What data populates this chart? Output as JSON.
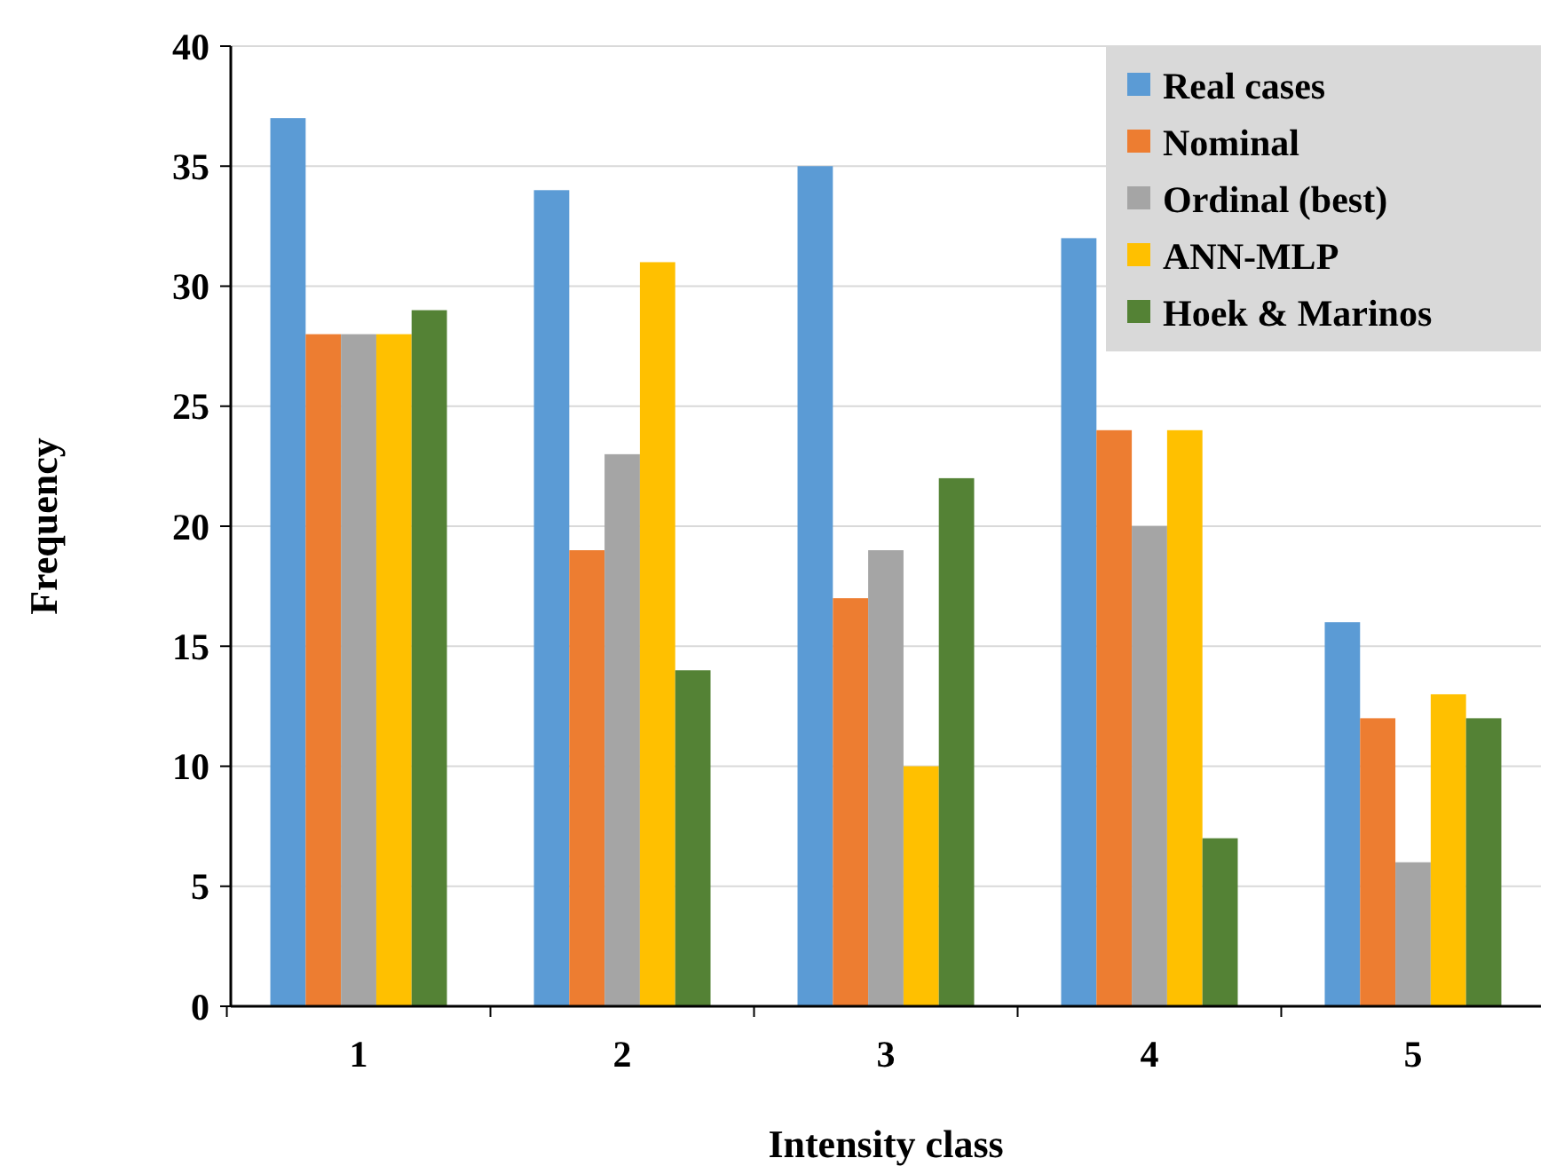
{
  "chart_data": {
    "type": "bar",
    "xlabel": "Intensity class",
    "ylabel": "Frequency",
    "categories": [
      "1",
      "2",
      "3",
      "4",
      "5"
    ],
    "series": [
      {
        "name": "Real cases",
        "color": "#5b9bd5",
        "values": [
          37,
          34,
          35,
          32,
          16
        ]
      },
      {
        "name": "Nominal",
        "color": "#ed7d31",
        "values": [
          28,
          19,
          17,
          24,
          12
        ]
      },
      {
        "name": "Ordinal (best)",
        "color": "#a5a5a5",
        "values": [
          28,
          23,
          19,
          20,
          6
        ]
      },
      {
        "name": "ANN-MLP",
        "color": "#ffc000",
        "values": [
          28,
          31,
          10,
          24,
          13
        ]
      },
      {
        "name": "Hoek & Marinos",
        "color": "#548235",
        "values": [
          29,
          14,
          22,
          7,
          12
        ]
      }
    ],
    "ylim": [
      0,
      40
    ],
    "yticks": [
      0,
      5,
      10,
      15,
      20,
      25,
      30,
      35,
      40
    ],
    "grid": "y",
    "legend": "top right"
  }
}
